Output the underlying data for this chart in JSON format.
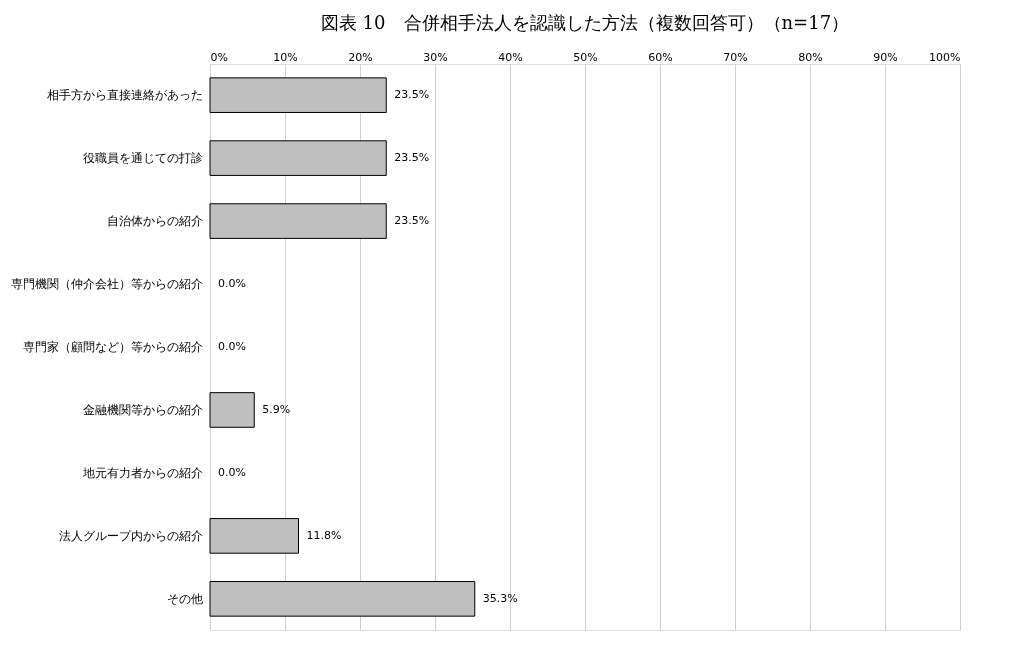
{
  "chart_data": {
    "type": "bar",
    "orientation": "horizontal",
    "title": "図表 10　合併相手法人を認識した方法（複数回答可）（n=17）",
    "categories": [
      "相手方から直接連絡があった",
      "役職員を通じての打診",
      "自治体からの紹介",
      "専門機関（仲介会社）等からの紹介",
      "専門家（顧問など）等からの紹介",
      "金融機関等からの紹介",
      "地元有力者からの紹介",
      "法人グループ内からの紹介",
      "その他"
    ],
    "values": [
      23.5,
      23.5,
      23.5,
      0.0,
      0.0,
      5.9,
      0.0,
      11.8,
      35.3
    ],
    "value_labels": [
      "23.5%",
      "23.5%",
      "23.5%",
      "0.0%",
      "0.0%",
      "5.9%",
      "0.0%",
      "11.8%",
      "35.3%"
    ],
    "color": "#bfbfbf",
    "xlim": [
      0,
      100
    ],
    "xticks": [
      {
        "value": 0,
        "label": "0%"
      },
      {
        "value": 10,
        "label": "10%"
      },
      {
        "value": 20,
        "label": "20%"
      },
      {
        "value": 30,
        "label": "30%"
      },
      {
        "value": 40,
        "label": "40%"
      },
      {
        "value": 50,
        "label": "50%"
      },
      {
        "value": 60,
        "label": "60%"
      },
      {
        "value": 70,
        "label": "70%"
      },
      {
        "value": 80,
        "label": "80%"
      },
      {
        "value": 90,
        "label": "90%"
      },
      {
        "value": 100,
        "label": "100%"
      }
    ],
    "grid": "x"
  }
}
